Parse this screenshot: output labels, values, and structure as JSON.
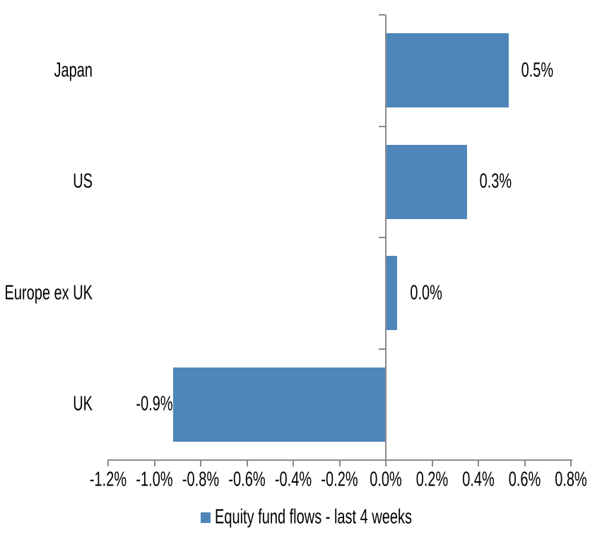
{
  "chart_data": {
    "type": "bar",
    "orientation": "horizontal",
    "title": "",
    "xlabel": "",
    "ylabel": "",
    "categories": [
      "Japan",
      "US",
      "Europe ex UK",
      "UK"
    ],
    "series": [
      {
        "name": "Equity fund flows - last 4 weeks",
        "values": [
          0.53,
          0.35,
          0.05,
          -0.92
        ],
        "data_labels": [
          "0.5%",
          "0.3%",
          "0.0%",
          "-0.9%"
        ]
      }
    ],
    "xlim": [
      -1.2,
      0.8
    ],
    "x_tick_values": [
      -1.2,
      -1.0,
      -0.8,
      -0.6,
      -0.4,
      -0.2,
      0.0,
      0.2,
      0.4,
      0.6,
      0.8
    ],
    "x_tick_labels": [
      "-1.2%",
      "-1.0%",
      "-0.8%",
      "-0.6%",
      "-0.4%",
      "-0.2%",
      "0.0%",
      "0.2%",
      "0.4%",
      "0.6%",
      "0.8%"
    ],
    "grid": false,
    "legend_position": "bottom",
    "bar_color": "#4E86BA",
    "axis_color": "#8A8A8A",
    "text_color": "#000000",
    "background_color": "#FFFFFF"
  },
  "legend": {
    "label": "Equity fund flows - last 4 weeks"
  }
}
